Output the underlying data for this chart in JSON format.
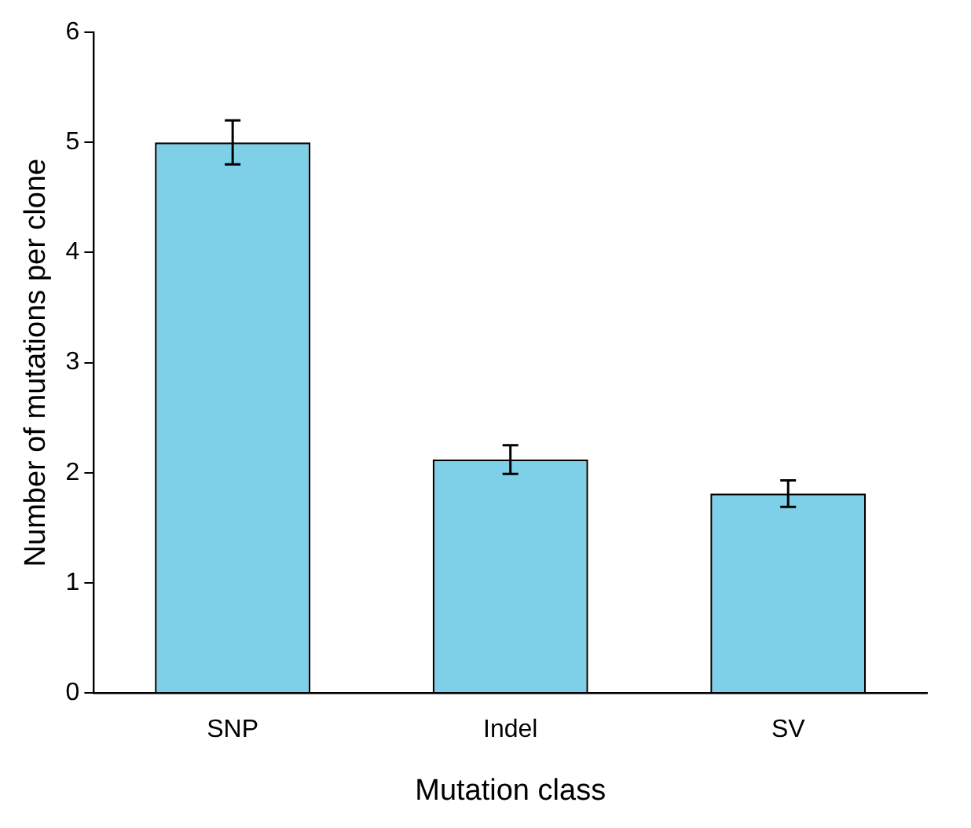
{
  "chart_data": {
    "type": "bar",
    "xlabel": "Mutation class",
    "ylabel": "Number of mutations per clone",
    "categories": [
      "SNP",
      "Indel",
      "SV"
    ],
    "values": [
      5.0,
      2.12,
      1.81
    ],
    "errors": [
      0.2,
      0.13,
      0.12
    ],
    "color": "#7ecfe8",
    "ylim": [
      0,
      6
    ],
    "yticks": [
      0,
      1,
      2,
      3,
      4,
      5,
      6
    ],
    "grid": false,
    "legend": false
  }
}
